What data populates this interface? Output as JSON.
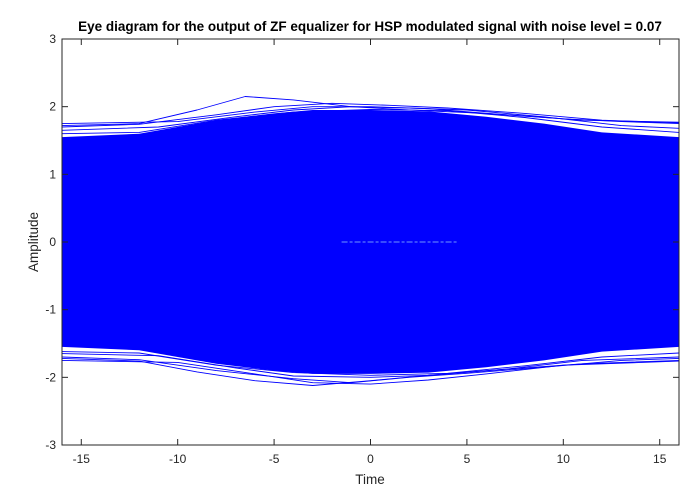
{
  "chart_data": {
    "type": "line",
    "title": "Eye diagram for the output of ZF equalizer for HSP modulated signal with noise level = 0.07",
    "xlabel": "Time",
    "ylabel": "Amplitude",
    "xlim": [
      -16,
      16
    ],
    "ylim": [
      -3,
      3
    ],
    "xticks": [
      -15,
      -10,
      -5,
      0,
      5,
      10,
      15
    ],
    "yticks": [
      -3,
      -2,
      -1,
      0,
      1,
      2,
      3
    ],
    "xtick_labels": [
      "-15",
      "-10",
      "-5",
      "0",
      "5",
      "10",
      "15"
    ],
    "ytick_labels": [
      "-3",
      "-2",
      "-1",
      "0",
      "1",
      "2",
      "3"
    ],
    "grid": false,
    "legend": "none",
    "series_color": "#0000ff",
    "axis_color": "#262626",
    "fill_envelope": {
      "x": [
        -16,
        -12,
        -8,
        -5,
        -3,
        0,
        3,
        6,
        9,
        12,
        16
      ],
      "upper": [
        1.55,
        1.6,
        1.8,
        1.9,
        1.95,
        1.95,
        1.93,
        1.85,
        1.75,
        1.62,
        1.55
      ],
      "lower": [
        -1.55,
        -1.6,
        -1.8,
        -1.9,
        -1.95,
        -1.95,
        -1.93,
        -1.85,
        -1.75,
        -1.62,
        -1.55
      ]
    },
    "series": [
      {
        "x": [
          -16,
          -12,
          -9,
          -6.5,
          -4,
          -1,
          2,
          6,
          10,
          13,
          16
        ],
        "y": [
          1.72,
          1.75,
          1.95,
          2.15,
          2.1,
          2.0,
          1.95,
          1.9,
          1.82,
          1.78,
          1.75
        ]
      },
      {
        "x": [
          -16,
          -12,
          -8,
          -5,
          -2,
          1,
          4,
          8,
          12,
          16
        ],
        "y": [
          1.7,
          1.74,
          1.88,
          2.0,
          2.05,
          2.02,
          1.98,
          1.9,
          1.8,
          1.76
        ]
      },
      {
        "x": [
          -16,
          -11,
          -7,
          -4,
          -1,
          2,
          5,
          9,
          13,
          16
        ],
        "y": [
          1.65,
          1.7,
          1.85,
          1.95,
          2.0,
          1.98,
          1.95,
          1.85,
          1.72,
          1.68
        ]
      },
      {
        "x": [
          -16,
          -10,
          -6,
          -3,
          0,
          3,
          7,
          11,
          16
        ],
        "y": [
          1.75,
          1.78,
          1.92,
          2.0,
          2.0,
          1.97,
          1.88,
          1.8,
          1.77
        ]
      },
      {
        "x": [
          -16,
          -12,
          -8,
          -4,
          0,
          4,
          8,
          12,
          16
        ],
        "y": [
          1.6,
          1.62,
          1.8,
          1.92,
          1.96,
          1.94,
          1.84,
          1.7,
          1.62
        ]
      },
      {
        "x": [
          -16,
          -12,
          -9,
          -6,
          -3,
          0,
          3,
          7,
          11,
          16
        ],
        "y": [
          -1.72,
          -1.76,
          -1.92,
          -2.05,
          -2.12,
          -2.05,
          -1.97,
          -1.88,
          -1.8,
          -1.75
        ]
      },
      {
        "x": [
          -16,
          -12,
          -8,
          -4,
          -1,
          2,
          5,
          9,
          13,
          16
        ],
        "y": [
          -1.7,
          -1.74,
          -1.9,
          -2.02,
          -2.08,
          -2.0,
          -1.94,
          -1.85,
          -1.75,
          -1.72
        ]
      },
      {
        "x": [
          -16,
          -11,
          -7,
          -4,
          0,
          3,
          7,
          11,
          16
        ],
        "y": [
          -1.65,
          -1.68,
          -1.86,
          -1.98,
          -2.0,
          -1.97,
          -1.88,
          -1.75,
          -1.7
        ]
      },
      {
        "x": [
          -16,
          -12,
          -8,
          -4,
          0,
          4,
          8,
          12,
          16
        ],
        "y": [
          -1.62,
          -1.64,
          -1.82,
          -1.93,
          -1.97,
          -1.94,
          -1.83,
          -1.7,
          -1.64
        ]
      },
      {
        "x": [
          -16,
          -10,
          -6,
          -3,
          0,
          3,
          6,
          10,
          16
        ],
        "y": [
          -1.75,
          -1.78,
          -1.95,
          -2.08,
          -2.1,
          -2.04,
          -1.95,
          -1.82,
          -1.76
        ]
      }
    ]
  }
}
